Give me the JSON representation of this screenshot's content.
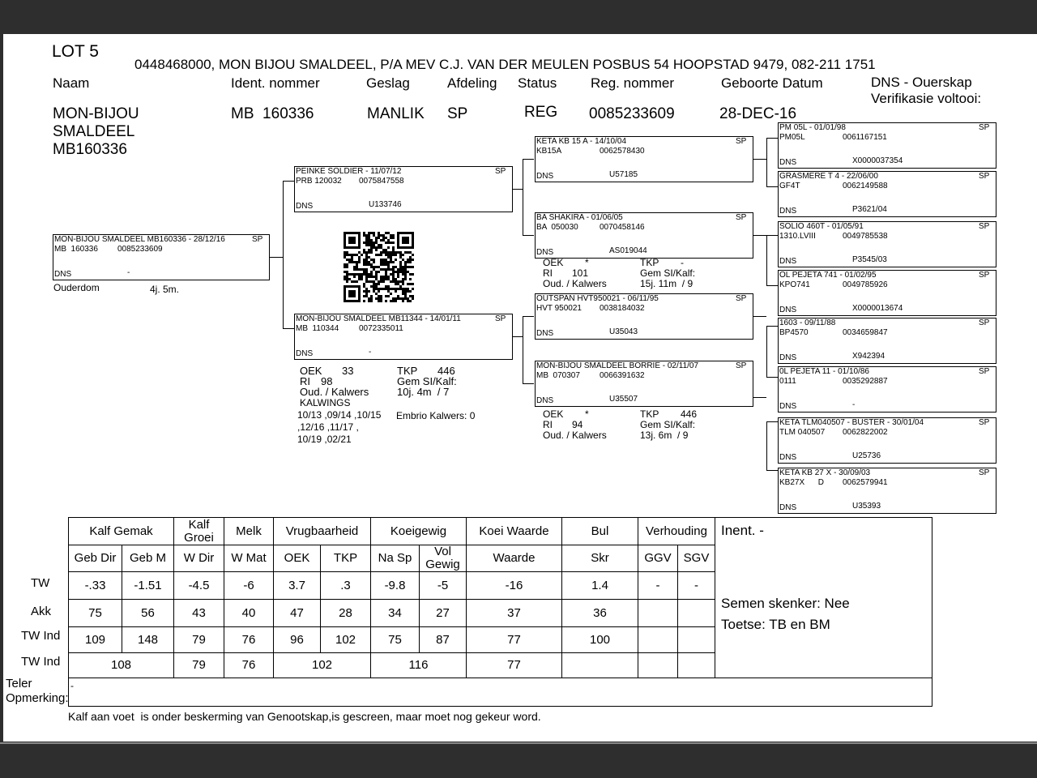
{
  "header": {
    "lot": "LOT 5",
    "owner": "0448468000, MON BIJOU SMALDEEL, P/A MEV C.J. VAN DER MEULEN POSBUS 54 HOOPSTAD 9479, 082-211 1751",
    "fields": [
      {
        "label": "Naam",
        "value": [
          "MON-BIJOU",
          "SMALDEEL",
          "MB160336"
        ]
      },
      {
        "label": "Ident. nommer",
        "value": "MB  160336"
      },
      {
        "label": "Geslag",
        "value": "MANLIK"
      },
      {
        "label": "Afdeling",
        "value": "SP"
      },
      {
        "label": "Status",
        "value": "REG"
      },
      {
        "label": "Reg. nommer",
        "value": "0085233609"
      },
      {
        "label": "Geboorte Datum",
        "value": "28-DEC-16"
      }
    ],
    "dns_lines": [
      "DNS - Ouerskap",
      "Verifikasie voltooi:"
    ]
  },
  "pedigree": {
    "boxes": [
      {
        "title": "MON-BIJOU SMALDEEL MB160336 - 28/12/16",
        "sp": "SP",
        "ident": "MB  160336",
        "reg": "0085233609",
        "dns_label": "DNS",
        "dns": "-"
      },
      {
        "title": "PEINKE SOLDIER - 11/07/12",
        "sp": "SP",
        "ident": "PRB 120032",
        "reg": "0075847558",
        "dns_label": "DNS",
        "dns": "U133746"
      },
      {
        "title": "MON-BIJOU SMALDEEL MB11344 - 14/01/11",
        "sp": "SP",
        "ident": "MB  110344",
        "reg": "0072335011",
        "dns_label": "DNS",
        "dns": "-"
      },
      {
        "title": "KETA KB 15 A - 14/10/04",
        "sp": "SP",
        "ident": "KB15A",
        "reg": "0062578430",
        "dns_label": "DNS",
        "dns": "U57185"
      },
      {
        "title": "BA SHAKIRA - 01/06/05",
        "sp": "SP",
        "ident": "BA  050030",
        "reg": "0070458146",
        "dns_label": "DNS",
        "dns": "AS019044"
      },
      {
        "title": "OUTSPAN HVT950021 - 06/11/95",
        "sp": "SP",
        "ident": "HVT 950021",
        "reg": "0038184032",
        "dns_label": "DNS",
        "dns": "U35043"
      },
      {
        "title": "MON-BIJOU SMALDEEL BORRIE - 02/11/07",
        "sp": "SP",
        "ident": "MB  070307",
        "reg": "0066391632",
        "dns_label": "DNS",
        "dns": "U35507"
      },
      {
        "title": "PM 05L - 01/01/98",
        "sp": "SP",
        "ident": "PM05L",
        "reg": "0061167151",
        "dns_label": "DNS",
        "dns": "X0000037354"
      },
      {
        "title": "GRASMERE T 4 - 22/06/00",
        "sp": "SP",
        "ident": "GF4T",
        "reg": "0062149588",
        "dns_label": "DNS",
        "dns": "P3621/04"
      },
      {
        "title": "SOLIO 460T - 01/05/91",
        "sp": "SP",
        "ident": "1310.LVIII",
        "reg": "0049785538",
        "dns_label": "DNS",
        "dns": "P3545/03"
      },
      {
        "title": "OL PEJETA 741 - 01/02/95",
        "sp": "SP",
        "ident": "KPO741",
        "reg": "0049785926",
        "dns_label": "DNS",
        "dns": "X0000013674"
      },
      {
        "title": "1603 - 09/11/88",
        "sp": "SP",
        "ident": "BP4570",
        "reg": "0034659847",
        "dns_label": "DNS",
        "dns": "X942394"
      },
      {
        "title": "0L PEJETA 11 - 01/10/86",
        "sp": "SP",
        "ident": "0111",
        "reg": "0035292887",
        "dns_label": "DNS",
        "dns": "-"
      },
      {
        "title": "KETA TLM040507 - BUSTER - 30/01/04",
        "sp": "SP",
        "ident": "TLM 040507",
        "reg": "0062822002",
        "dns_label": "DNS",
        "dns": "U25736"
      },
      {
        "title": "KETA KB 27 X - 30/09/03",
        "sp": "SP",
        "ident": "KB27X      D",
        "reg": "0062579941",
        "dns_label": "DNS",
        "dns": "U35393"
      }
    ],
    "age_label": "Ouderdom",
    "age": "4j. 5m.",
    "stats": [
      {
        "oek_label": "OEK",
        "oek": "33",
        "tkp_label": "TKP",
        "tkp": "446",
        "ri_label": "RI",
        "ri": "98",
        "gem_label": "Gem SI/Kalf:",
        "oud_label": "Oud. / Kalwers",
        "oud": "10j. 4m  / 7"
      },
      {
        "oek_label": "OEK",
        "oek": "*",
        "tkp_label": "TKP",
        "tkp": "-",
        "ri_label": "RI",
        "ri": "101",
        "gem_label": "Gem SI/Kalf:",
        "oud_label": "Oud. / Kalwers",
        "oud": "15j. 11m  / 9"
      },
      {
        "oek_label": "OEK",
        "oek": "*",
        "tkp_label": "TKP",
        "tkp": "446",
        "ri_label": "RI",
        "ri": "94",
        "gem_label": "Gem SI/Kalf:",
        "oud_label": "Oud. / Kalwers",
        "oud": "13j. 6m  / 9"
      }
    ],
    "kalwings_label": "KALWINGS",
    "kalwings": [
      "10/13 ,09/14 ,10/15",
      ",12/16 ,11/17 ,",
      "10/19 ,02/21"
    ],
    "embrio": "Embrio Kalwers: 0"
  },
  "table": {
    "groups": [
      "Kalf Gemak",
      "Kalf Groei",
      "Melk",
      "Vrugbaarheid",
      "Koeigewig",
      "Koei Waarde",
      "Bul",
      "Verhouding"
    ],
    "columns": [
      "Geb Dir",
      "Geb M",
      "W Dir",
      "W Mat",
      "OEK",
      "TKP",
      "Na Sp",
      "Vol Gewig",
      "Waarde",
      "Skr",
      "GGV",
      "SGV"
    ],
    "row_labels": [
      "TW",
      "Akk",
      "TW Ind",
      "TW Ind"
    ],
    "rows": [
      [
        "-.33",
        "-1.51",
        "-4.5",
        "-6",
        "3.7",
        ".3",
        "-9.8",
        "-5",
        "-16",
        "1.4",
        "-",
        "-"
      ],
      [
        "75",
        "56",
        "43",
        "40",
        "47",
        "28",
        "34",
        "27",
        "37",
        "36",
        null,
        null
      ],
      [
        "109",
        "148",
        "79",
        "76",
        "96",
        "102",
        "75",
        "87",
        "77",
        "100",
        null,
        null
      ],
      [
        "108",
        "79",
        "76",
        "102",
        "116",
        "77",
        null,
        null,
        null
      ]
    ],
    "info": [
      "Inent. -",
      "Semen skenker: Nee",
      "Toetse: TB en BM"
    ],
    "remark_label": [
      "Teler",
      "Opmerking:"
    ],
    "remark": "-"
  },
  "footer": "Kalf aan voet  is onder beskerming van Genootskap,is gescreen, maar moet nog gekeur word."
}
